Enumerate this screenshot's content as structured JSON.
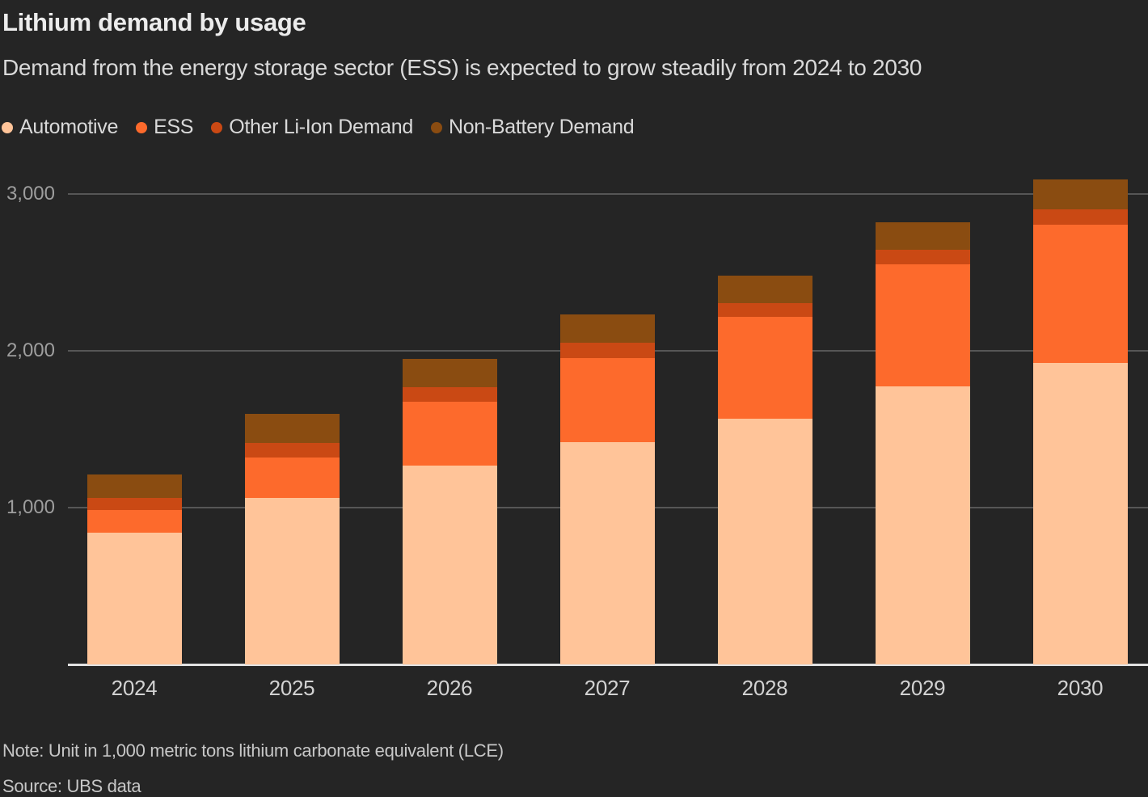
{
  "chart_data": {
    "type": "bar",
    "stacked": true,
    "title": "Lithium demand by usage",
    "subtitle": "Demand from the energy storage sector (ESS) is expected to grow steadily from 2024 to 2030",
    "note": "Note: Unit in 1,000 metric tons lithium carbonate equivalent (LCE)",
    "source": "Source: UBS data",
    "categories": [
      "2024",
      "2025",
      "2026",
      "2027",
      "2028",
      "2029",
      "2030"
    ],
    "series": [
      {
        "name": "Automotive",
        "color": "#ffc499",
        "values": [
          840,
          1060,
          1270,
          1415,
          1565,
          1770,
          1920
        ]
      },
      {
        "name": "ESS",
        "color": "#fd6a2c",
        "values": [
          145,
          260,
          405,
          540,
          650,
          780,
          885
        ]
      },
      {
        "name": "Other Li-Ion Demand",
        "color": "#ca4914",
        "values": [
          75,
          90,
          90,
          95,
          90,
          95,
          95
        ]
      },
      {
        "name": "Non-Battery Demand",
        "color": "#8a4c11",
        "values": [
          150,
          185,
          185,
          180,
          175,
          175,
          190
        ]
      }
    ],
    "totals": [
      1210,
      1595,
      1950,
      2230,
      2480,
      2820,
      3090
    ],
    "yticks": [
      1000,
      2000,
      3000
    ],
    "ylim": [
      0,
      3150
    ],
    "grid": true,
    "legend_position": "top",
    "colors": {
      "background": "#252525",
      "gridline": "#565656",
      "axis_line": "#e2e2e2",
      "title_text": "#ececec",
      "subtitle_text": "#d9d9d9",
      "ytick_text": "#9e9e9e",
      "xtick_text": "#d2d2d2",
      "note_text": "#c7c7c7"
    }
  }
}
